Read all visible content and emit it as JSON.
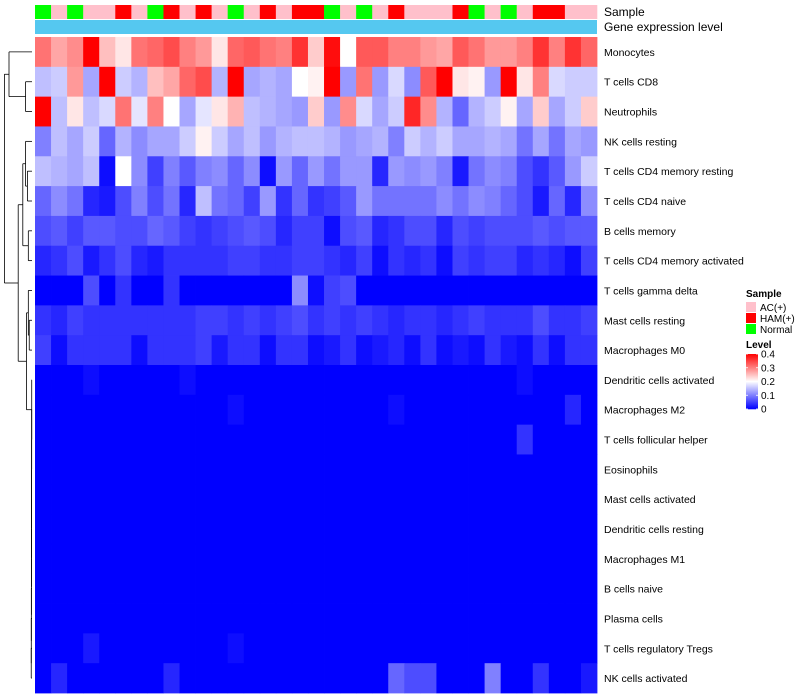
{
  "chart_data": {
    "type": "heatmap",
    "annotation_labels": {
      "sample": "Sample",
      "expression": "Gene expression level"
    },
    "row_labels": [
      "Monocytes",
      "T cells CD8",
      "Neutrophils",
      "NK cells resting",
      "T cells CD4 memory resting",
      "T cells CD4 naive",
      "B cells memory",
      "T cells CD4 memory activated",
      "T cells gamma delta",
      "Mast cells resting",
      "Macrophages M0",
      "Dendritic cells activated",
      "Macrophages M2",
      "T cells follicular helper",
      "Eosinophils",
      "Mast cells activated",
      "Dendritic cells resting",
      "Macrophages M1",
      "B cells naive",
      "Plasma cells",
      "T cells regulatory  Tregs",
      "NK cells activated"
    ],
    "sample_groups": [
      "Normal",
      "AC(+)",
      "Normal",
      "AC(+)",
      "AC(+)",
      "HAM(+)",
      "AC(+)",
      "Normal",
      "HAM(+)",
      "AC(+)",
      "HAM(+)",
      "AC(+)",
      "Normal",
      "AC(+)",
      "HAM(+)",
      "AC(+)",
      "HAM(+)",
      "HAM(+)",
      "Normal",
      "AC(+)",
      "Normal",
      "AC(+)",
      "HAM(+)",
      "AC(+)",
      "AC(+)",
      "AC(+)",
      "HAM(+)",
      "Normal",
      "AC(+)",
      "Normal",
      "AC(+)",
      "HAM(+)",
      "HAM(+)",
      "AC(+)",
      "AC(+)"
    ],
    "values": [
      [
        0.31,
        0.27,
        0.29,
        0.4,
        0.25,
        0.22,
        0.31,
        0.32,
        0.34,
        0.3,
        0.28,
        0.22,
        0.32,
        0.33,
        0.31,
        0.3,
        0.36,
        0.24,
        0.39,
        0.2,
        0.33,
        0.33,
        0.3,
        0.3,
        0.28,
        0.27,
        0.33,
        0.31,
        0.28,
        0.28,
        0.3,
        0.36,
        0.3,
        0.36,
        0.32
      ],
      [
        0.15,
        0.16,
        0.28,
        0.13,
        0.4,
        0.16,
        0.14,
        0.25,
        0.27,
        0.32,
        0.34,
        0.14,
        0.4,
        0.13,
        0.14,
        0.13,
        0.2,
        0.21,
        0.4,
        0.12,
        0.31,
        0.12,
        0.17,
        0.11,
        0.33,
        0.41,
        0.22,
        0.21,
        0.12,
        0.4,
        0.22,
        0.3,
        0.17,
        0.16,
        0.16
      ],
      [
        0.4,
        0.15,
        0.22,
        0.15,
        0.17,
        0.31,
        0.18,
        0.3,
        0.2,
        0.13,
        0.18,
        0.22,
        0.26,
        0.15,
        0.14,
        0.13,
        0.12,
        0.24,
        0.12,
        0.29,
        0.17,
        0.13,
        0.16,
        0.37,
        0.29,
        0.14,
        0.08,
        0.14,
        0.16,
        0.21,
        0.13,
        0.24,
        0.13,
        0.16,
        0.24
      ],
      [
        0.1,
        0.15,
        0.13,
        0.16,
        0.08,
        0.14,
        0.11,
        0.13,
        0.13,
        0.16,
        0.21,
        0.16,
        0.13,
        0.15,
        0.12,
        0.14,
        0.15,
        0.15,
        0.14,
        0.12,
        0.13,
        0.14,
        0.1,
        0.16,
        0.14,
        0.16,
        0.13,
        0.13,
        0.14,
        0.13,
        0.09,
        0.13,
        0.09,
        0.13,
        0.12
      ],
      [
        0.15,
        0.14,
        0.13,
        0.15,
        0.01,
        0.2,
        0.11,
        0.05,
        0.1,
        0.07,
        0.1,
        0.11,
        0.08,
        0.11,
        0.01,
        0.12,
        0.08,
        0.12,
        0.09,
        0.12,
        0.12,
        0.03,
        0.12,
        0.11,
        0.12,
        0.1,
        0.02,
        0.09,
        0.11,
        0.1,
        0.06,
        0.04,
        0.07,
        0.12,
        0.16
      ],
      [
        0.08,
        0.11,
        0.09,
        0.03,
        0.02,
        0.06,
        0.1,
        0.06,
        0.09,
        0.03,
        0.15,
        0.09,
        0.08,
        0.05,
        0.12,
        0.04,
        0.08,
        0.04,
        0.05,
        0.07,
        0.12,
        0.09,
        0.09,
        0.09,
        0.09,
        0.11,
        0.09,
        0.11,
        0.1,
        0.08,
        0.06,
        0.02,
        0.08,
        0.03,
        0.11
      ],
      [
        0.06,
        0.07,
        0.05,
        0.07,
        0.07,
        0.06,
        0.06,
        0.08,
        0.07,
        0.05,
        0.04,
        0.05,
        0.06,
        0.07,
        0.06,
        0.03,
        0.05,
        0.05,
        0.01,
        0.06,
        0.07,
        0.03,
        0.04,
        0.06,
        0.06,
        0.03,
        0.06,
        0.05,
        0.06,
        0.06,
        0.06,
        0.07,
        0.06,
        0.07,
        0.07
      ],
      [
        0.03,
        0.04,
        0.06,
        0.02,
        0.04,
        0.06,
        0.03,
        0.02,
        0.04,
        0.04,
        0.04,
        0.04,
        0.05,
        0.05,
        0.04,
        0.04,
        0.05,
        0.05,
        0.04,
        0.03,
        0.05,
        0.01,
        0.04,
        0.03,
        0.04,
        0.01,
        0.05,
        0.04,
        0.05,
        0.05,
        0.03,
        0.04,
        0.03,
        0.01,
        0.05
      ],
      [
        0.0,
        0.0,
        0.0,
        0.06,
        0.0,
        0.04,
        0.0,
        0.0,
        0.04,
        0.0,
        0.0,
        0.0,
        0.0,
        0.0,
        0.0,
        0.0,
        0.11,
        0.01,
        0.05,
        0.06,
        0.0,
        0.0,
        0.0,
        0.0,
        0.0,
        0.0,
        0.0,
        0.0,
        0.0,
        0.0,
        0.0,
        0.0,
        0.0,
        0.0,
        0.0
      ],
      [
        0.04,
        0.03,
        0.05,
        0.04,
        0.04,
        0.04,
        0.04,
        0.04,
        0.04,
        0.04,
        0.05,
        0.05,
        0.04,
        0.05,
        0.04,
        0.05,
        0.06,
        0.04,
        0.05,
        0.04,
        0.05,
        0.04,
        0.03,
        0.04,
        0.04,
        0.03,
        0.04,
        0.05,
        0.04,
        0.04,
        0.04,
        0.06,
        0.04,
        0.04,
        0.05
      ],
      [
        0.05,
        0.01,
        0.04,
        0.04,
        0.04,
        0.04,
        0.01,
        0.04,
        0.04,
        0.04,
        0.05,
        0.02,
        0.04,
        0.04,
        0.01,
        0.04,
        0.04,
        0.01,
        0.02,
        0.04,
        0.01,
        0.02,
        0.03,
        0.01,
        0.04,
        0.01,
        0.02,
        0.01,
        0.04,
        0.02,
        0.01,
        0.04,
        0.01,
        0.04,
        0.04
      ],
      [
        0.0,
        0.0,
        0.0,
        0.01,
        0.0,
        0.0,
        0.0,
        0.0,
        0.0,
        0.01,
        0.0,
        0.0,
        0.0,
        0.0,
        0.0,
        0.0,
        0.0,
        0.0,
        0.0,
        0.0,
        0.0,
        0.0,
        0.0,
        0.0,
        0.0,
        0.0,
        0.0,
        0.0,
        0.0,
        0.0,
        0.01,
        0.0,
        0.0,
        0.0,
        0.0
      ],
      [
        0.0,
        0.0,
        0.0,
        0.0,
        0.0,
        0.0,
        0.0,
        0.0,
        0.0,
        0.0,
        0.0,
        0.0,
        0.01,
        0.0,
        0.0,
        0.0,
        0.0,
        0.0,
        0.0,
        0.0,
        0.0,
        0.0,
        0.01,
        0.0,
        0.0,
        0.0,
        0.0,
        0.0,
        0.0,
        0.0,
        0.0,
        0.0,
        0.0,
        0.03,
        0.0
      ],
      [
        0.0,
        0.0,
        0.0,
        0.0,
        0.0,
        0.0,
        0.0,
        0.0,
        0.0,
        0.0,
        0.0,
        0.0,
        0.0,
        0.0,
        0.0,
        0.0,
        0.0,
        0.0,
        0.0,
        0.0,
        0.0,
        0.0,
        0.0,
        0.0,
        0.0,
        0.0,
        0.0,
        0.0,
        0.0,
        0.0,
        0.04,
        0.0,
        0.0,
        0.0,
        0.0
      ],
      [
        0.0,
        0.0,
        0.0,
        0.0,
        0.0,
        0.0,
        0.0,
        0.0,
        0.0,
        0.0,
        0.0,
        0.0,
        0.0,
        0.0,
        0.0,
        0.0,
        0.0,
        0.0,
        0.0,
        0.0,
        0.0,
        0.0,
        0.0,
        0.0,
        0.0,
        0.0,
        0.0,
        0.0,
        0.0,
        0.0,
        0.0,
        0.0,
        0.0,
        0.0,
        0.0
      ],
      [
        0.0,
        0.0,
        0.0,
        0.0,
        0.0,
        0.0,
        0.0,
        0.0,
        0.0,
        0.0,
        0.0,
        0.0,
        0.0,
        0.0,
        0.0,
        0.0,
        0.0,
        0.0,
        0.0,
        0.0,
        0.0,
        0.0,
        0.0,
        0.0,
        0.0,
        0.0,
        0.0,
        0.0,
        0.0,
        0.0,
        0.0,
        0.0,
        0.0,
        0.0,
        0.0
      ],
      [
        0.0,
        0.0,
        0.0,
        0.0,
        0.0,
        0.0,
        0.0,
        0.0,
        0.0,
        0.0,
        0.0,
        0.0,
        0.0,
        0.0,
        0.0,
        0.0,
        0.0,
        0.0,
        0.0,
        0.0,
        0.0,
        0.0,
        0.0,
        0.0,
        0.0,
        0.0,
        0.0,
        0.0,
        0.0,
        0.0,
        0.0,
        0.0,
        0.0,
        0.0,
        0.0
      ],
      [
        0.0,
        0.0,
        0.0,
        0.0,
        0.0,
        0.0,
        0.0,
        0.0,
        0.0,
        0.0,
        0.0,
        0.0,
        0.0,
        0.0,
        0.0,
        0.0,
        0.0,
        0.0,
        0.0,
        0.0,
        0.0,
        0.0,
        0.0,
        0.0,
        0.0,
        0.0,
        0.0,
        0.0,
        0.0,
        0.0,
        0.0,
        0.0,
        0.0,
        0.0,
        0.0
      ],
      [
        0.0,
        0.0,
        0.0,
        0.0,
        0.0,
        0.0,
        0.0,
        0.0,
        0.0,
        0.0,
        0.0,
        0.0,
        0.0,
        0.0,
        0.0,
        0.0,
        0.0,
        0.0,
        0.0,
        0.0,
        0.0,
        0.0,
        0.0,
        0.0,
        0.0,
        0.0,
        0.0,
        0.0,
        0.0,
        0.0,
        0.0,
        0.0,
        0.0,
        0.0,
        0.0
      ],
      [
        0.0,
        0.0,
        0.0,
        0.0,
        0.0,
        0.0,
        0.0,
        0.0,
        0.0,
        0.0,
        0.0,
        0.0,
        0.0,
        0.0,
        0.0,
        0.0,
        0.0,
        0.0,
        0.0,
        0.0,
        0.0,
        0.0,
        0.0,
        0.0,
        0.0,
        0.0,
        0.0,
        0.0,
        0.0,
        0.0,
        0.0,
        0.0,
        0.0,
        0.0,
        0.0
      ],
      [
        0.0,
        0.0,
        0.0,
        0.02,
        0.0,
        0.0,
        0.0,
        0.0,
        0.0,
        0.0,
        0.0,
        0.0,
        0.01,
        0.0,
        0.0,
        0.0,
        0.0,
        0.0,
        0.0,
        0.0,
        0.0,
        0.0,
        0.0,
        0.0,
        0.0,
        0.0,
        0.0,
        0.0,
        0.0,
        0.0,
        0.0,
        0.0,
        0.0,
        0.0,
        0.0
      ],
      [
        0.0,
        0.03,
        0.0,
        0.0,
        0.0,
        0.0,
        0.0,
        0.0,
        0.03,
        0.0,
        0.0,
        0.0,
        0.0,
        0.0,
        0.0,
        0.0,
        0.0,
        0.0,
        0.0,
        0.0,
        0.0,
        0.0,
        0.08,
        0.06,
        0.06,
        0.0,
        0.0,
        0.0,
        0.1,
        0.0,
        0.0,
        0.04,
        0.0,
        0.0,
        0.02
      ]
    ],
    "legend": {
      "sample": {
        "title": "Sample",
        "items": [
          {
            "label": "AC(+)",
            "color": "#FFC0CB"
          },
          {
            "label": "HAM(+)",
            "color": "#FF0000"
          },
          {
            "label": "Normal",
            "color": "#00FF00"
          }
        ]
      },
      "level": {
        "title": "Level",
        "ticks": [
          "0.4",
          "0.3",
          "0.2",
          "0.1",
          "0"
        ]
      }
    },
    "expression_bar_color": "#55C8F0",
    "color_scale": {
      "min": 0,
      "mid": 0.2,
      "max": 0.4,
      "low": "#0000FF",
      "mid_color": "#FFFFFF",
      "high": "#FF0000"
    }
  }
}
